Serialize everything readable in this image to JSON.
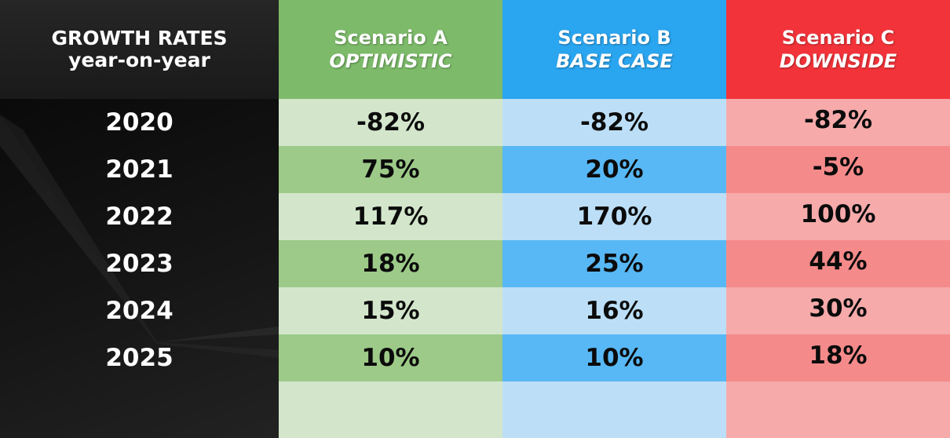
{
  "header": {
    "corner_line1": "GROWTH RATES",
    "corner_line2": "year-on-year"
  },
  "chart_data": {
    "type": "table",
    "title": "GROWTH RATES year-on-year",
    "columns": [
      {
        "name": "Scenario A",
        "subtitle": "OPTIMISTIC",
        "color": "#7dbb6a"
      },
      {
        "name": "Scenario B",
        "subtitle": "BASE CASE",
        "color": "#2aa5ef"
      },
      {
        "name": "Scenario C",
        "subtitle": "DOWNSIDE",
        "color": "#f3333a"
      }
    ],
    "rows": [
      {
        "year": "2020",
        "a": "-82%",
        "b": "-82%",
        "c": "-82%"
      },
      {
        "year": "2021",
        "a": "75%",
        "b": "20%",
        "c": "-5%"
      },
      {
        "year": "2022",
        "a": "117%",
        "b": "170%",
        "c": "100%"
      },
      {
        "year": "2023",
        "a": "18%",
        "b": "25%",
        "c": "44%"
      },
      {
        "year": "2024",
        "a": "15%",
        "b": "16%",
        "c": "30%"
      },
      {
        "year": "2025",
        "a": "10%",
        "b": "10%",
        "c": "18%"
      }
    ],
    "series": [
      {
        "name": "Scenario A",
        "values": [
          -82,
          75,
          117,
          18,
          15,
          10
        ]
      },
      {
        "name": "Scenario B",
        "values": [
          -82,
          20,
          170,
          25,
          16,
          10
        ]
      },
      {
        "name": "Scenario C",
        "values": [
          -82,
          -5,
          100,
          44,
          30,
          18
        ]
      }
    ],
    "categories": [
      "2020",
      "2021",
      "2022",
      "2023",
      "2024",
      "2025"
    ]
  }
}
